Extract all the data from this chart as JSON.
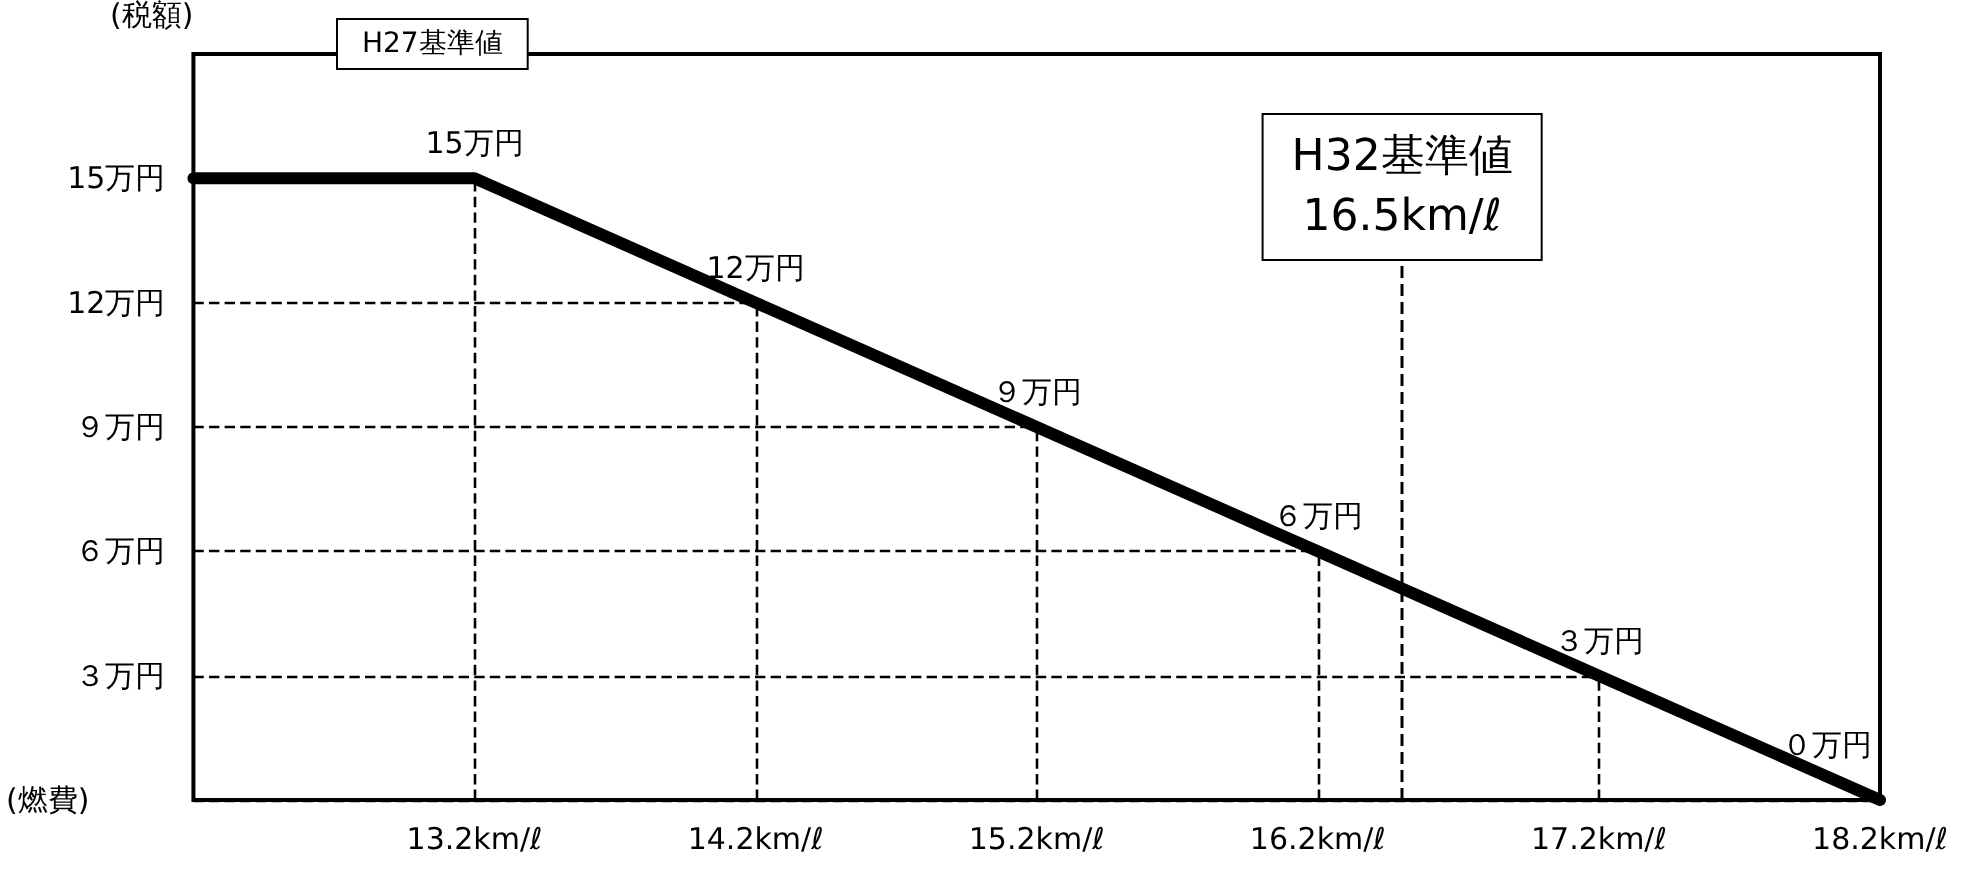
{
  "chart_data": {
    "type": "line",
    "xlabel": "(燃費)",
    "ylabel": "(税額)",
    "x": [
      12.2,
      13.2,
      14.2,
      15.2,
      16.2,
      17.2,
      18.2
    ],
    "series": [
      {
        "color": "#000000",
        "values": [
          15,
          15,
          12,
          9,
          6,
          3,
          0
        ],
        "value_labels": [
          null,
          "15万円",
          "12万円",
          "９万円",
          "６万円",
          "３万円",
          "０万円"
        ]
      }
    ],
    "xlim": [
      12.2,
      18.2
    ],
    "xticks": [
      {
        "value": 13.2,
        "label": "13.2km/ℓ"
      },
      {
        "value": 14.2,
        "label": "14.2km/ℓ"
      },
      {
        "value": 15.2,
        "label": "15.2km/ℓ"
      },
      {
        "value": 16.2,
        "label": "16.2km/ℓ"
      },
      {
        "value": 17.2,
        "label": "17.2km/ℓ"
      },
      {
        "value": 18.2,
        "label": "18.2km/ℓ"
      }
    ],
    "ylim": [
      0,
      18
    ],
    "yticks": [
      {
        "value": 3,
        "label": "３万円"
      },
      {
        "value": 6,
        "label": "６万円"
      },
      {
        "value": 9,
        "label": "９万円"
      },
      {
        "value": 12,
        "label": "12万円"
      },
      {
        "value": 15,
        "label": "15万円"
      }
    ],
    "ref_lines": [
      {
        "axis": "x",
        "value": 16.5,
        "label": "H32基準値\n16.5km/ℓ",
        "line_style": "dashed",
        "color": "#000000"
      }
    ],
    "annotations": [
      "H27基準値"
    ],
    "marker": "none",
    "line_style": "solid"
  }
}
